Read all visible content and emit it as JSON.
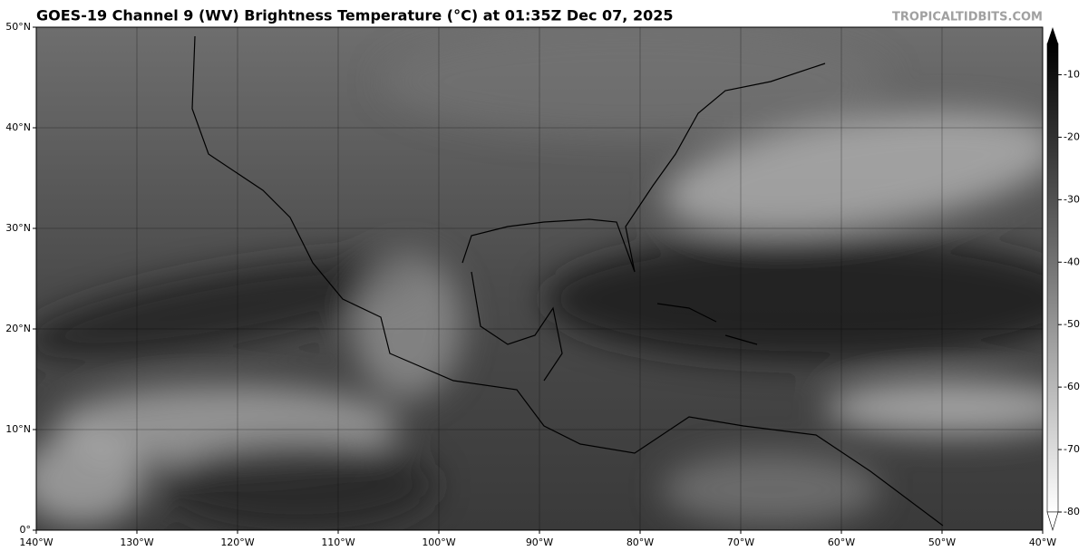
{
  "header": {
    "title": "GOES-19 Channel 9 (WV) Brightness Temperature (°C) at 01:35Z Dec 07, 2025",
    "credit": "TROPICALTIDBITS.COM"
  },
  "map": {
    "xlim": [
      -140,
      -40
    ],
    "ylim": [
      0,
      50
    ],
    "xticks": [
      {
        "value": -140,
        "label": "140°W"
      },
      {
        "value": -130,
        "label": "130°W"
      },
      {
        "value": -120,
        "label": "120°W"
      },
      {
        "value": -110,
        "label": "110°W"
      },
      {
        "value": -100,
        "label": "100°W"
      },
      {
        "value": -90,
        "label": "90°W"
      },
      {
        "value": -80,
        "label": "80°W"
      },
      {
        "value": -70,
        "label": "70°W"
      },
      {
        "value": -60,
        "label": "60°W"
      },
      {
        "value": -50,
        "label": "50°W"
      },
      {
        "value": -40,
        "label": "40°W"
      }
    ],
    "yticks": [
      {
        "value": 0,
        "label": "0°"
      },
      {
        "value": 10,
        "label": "10°N"
      },
      {
        "value": 20,
        "label": "20°N"
      },
      {
        "value": 30,
        "label": "30°N"
      },
      {
        "value": 40,
        "label": "40°N"
      },
      {
        "value": 50,
        "label": "50°N"
      }
    ]
  },
  "colorbar": {
    "lim": [
      -80,
      -5
    ],
    "ticks": [
      -10,
      -20,
      -30,
      -40,
      -50,
      -60,
      -70,
      -80
    ]
  }
}
